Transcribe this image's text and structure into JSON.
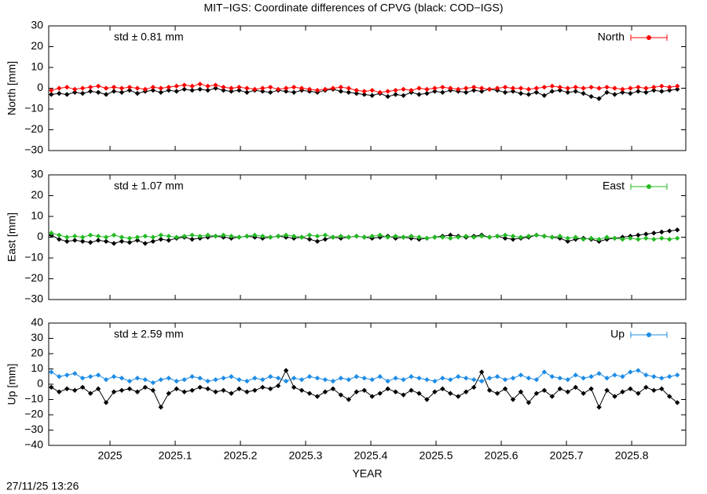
{
  "title": "MIT−IGS: Coordinate differences of CPVG (black: COD−IGS)",
  "timestamp": "27/11/25 13:26",
  "chart_data": [
    {
      "type": "line",
      "ylabel": "North [mm]",
      "annotation": "std ± 0.81 mm",
      "legend": "top-right",
      "x": [
        2024.91,
        2024.922,
        2024.934,
        2024.946,
        2024.958,
        2024.97,
        2024.982,
        2024.994,
        2025.006,
        2025.018,
        2025.03,
        2025.042,
        2025.054,
        2025.066,
        2025.078,
        2025.09,
        2025.102,
        2025.114,
        2025.126,
        2025.138,
        2025.15,
        2025.162,
        2025.174,
        2025.186,
        2025.198,
        2025.21,
        2025.222,
        2025.234,
        2025.246,
        2025.258,
        2025.27,
        2025.282,
        2025.294,
        2025.306,
        2025.318,
        2025.33,
        2025.342,
        2025.354,
        2025.366,
        2025.378,
        2025.39,
        2025.402,
        2025.414,
        2025.426,
        2025.438,
        2025.45,
        2025.462,
        2025.474,
        2025.486,
        2025.498,
        2025.51,
        2025.522,
        2025.534,
        2025.546,
        2025.558,
        2025.57,
        2025.582,
        2025.594,
        2025.606,
        2025.618,
        2025.63,
        2025.642,
        2025.654,
        2025.666,
        2025.678,
        2025.69,
        2025.702,
        2025.714,
        2025.726,
        2025.738,
        2025.75,
        2025.762,
        2025.774,
        2025.786,
        2025.798,
        2025.81,
        2025.822,
        2025.834,
        2025.846,
        2025.858,
        2025.87
      ],
      "series": [
        {
          "color": "#000000",
          "values": [
            -3,
            -2.5,
            -3,
            -2,
            -2.5,
            -1.5,
            -2,
            -3,
            -1.5,
            -2,
            -1,
            -2.5,
            -1.5,
            -1,
            -2,
            -1,
            -1.5,
            -0.5,
            -1,
            -0.5,
            -1,
            0,
            -1,
            -1.5,
            -1,
            -2,
            -1,
            -1.5,
            -2,
            -1,
            -1.5,
            -2,
            -1,
            -1.5,
            -2,
            -1,
            -0.5,
            -1.5,
            -2,
            -2.5,
            -3,
            -3.5,
            -2.5,
            -4,
            -3,
            -3.5,
            -2,
            -3,
            -2.5,
            -1.5,
            -2,
            -1,
            -1.5,
            -2,
            -1,
            -1.5,
            -0.5,
            -1,
            -2,
            -1.5,
            -2.5,
            -3,
            -2,
            -3.5,
            -1.5,
            -1,
            -2,
            -1.5,
            -2.5,
            -4,
            -5,
            -2,
            -3,
            -2,
            -2.5,
            -1.5,
            -2,
            -1,
            -1.5,
            -1,
            -0.5
          ]
        },
        {
          "name": "North",
          "color": "#ff0000",
          "values": [
            -1,
            0,
            0.5,
            -0.5,
            0,
            0.5,
            1,
            0,
            0.5,
            0,
            0.5,
            0,
            -0.5,
            0.5,
            0,
            0.5,
            1,
            1.5,
            1,
            2,
            1,
            1.5,
            0.5,
            0,
            0.5,
            0,
            -0.5,
            0,
            0.5,
            -0.5,
            0,
            0.5,
            0,
            -0.5,
            -1,
            -0.5,
            0,
            0.5,
            0,
            -1,
            -1.5,
            -1,
            -2,
            -1.5,
            -1,
            -0.5,
            -1,
            0,
            -0.5,
            0,
            0.5,
            0,
            -0.5,
            0,
            0.5,
            0,
            -0.5,
            0,
            0.5,
            0,
            0,
            -0.5,
            0,
            0.5,
            1,
            0.5,
            0,
            0.5,
            0,
            0.5,
            0,
            0.5,
            0,
            -0.5,
            0,
            0.5,
            0,
            0.5,
            1,
            0.5,
            1
          ]
        }
      ],
      "xlim": [
        2024.906,
        2025.883
      ],
      "xticks": [
        2025,
        2025.1,
        2025.2,
        2025.3,
        2025.4,
        2025.5,
        2025.6,
        2025.7,
        2025.8
      ],
      "ylim": [
        -30,
        30
      ],
      "yticks": [
        {
          "value": -30,
          "label": "−30"
        },
        {
          "value": -20,
          "label": "−20"
        },
        {
          "value": -10,
          "label": "−10"
        },
        0,
        10,
        20,
        30
      ]
    },
    {
      "type": "line",
      "ylabel": "East [mm]",
      "annotation": "std ± 1.07 mm",
      "legend": "top-right",
      "x": [
        2024.91,
        2024.922,
        2024.934,
        2024.946,
        2024.958,
        2024.97,
        2024.982,
        2024.994,
        2025.006,
        2025.018,
        2025.03,
        2025.042,
        2025.054,
        2025.066,
        2025.078,
        2025.09,
        2025.102,
        2025.114,
        2025.126,
        2025.138,
        2025.15,
        2025.162,
        2025.174,
        2025.186,
        2025.198,
        2025.21,
        2025.222,
        2025.234,
        2025.246,
        2025.258,
        2025.27,
        2025.282,
        2025.294,
        2025.306,
        2025.318,
        2025.33,
        2025.342,
        2025.354,
        2025.366,
        2025.378,
        2025.39,
        2025.402,
        2025.414,
        2025.426,
        2025.438,
        2025.45,
        2025.462,
        2025.474,
        2025.486,
        2025.498,
        2025.51,
        2025.522,
        2025.534,
        2025.546,
        2025.558,
        2025.57,
        2025.582,
        2025.594,
        2025.606,
        2025.618,
        2025.63,
        2025.642,
        2025.654,
        2025.666,
        2025.678,
        2025.69,
        2025.702,
        2025.714,
        2025.726,
        2025.738,
        2025.75,
        2025.762,
        2025.774,
        2025.786,
        2025.798,
        2025.81,
        2025.822,
        2025.834,
        2025.846,
        2025.858,
        2025.87
      ],
      "series": [
        {
          "color": "#000000",
          "values": [
            1,
            -1,
            -2,
            -1.5,
            -2,
            -2.5,
            -1.5,
            -2,
            -3,
            -2,
            -2.5,
            -1.5,
            -3,
            -2,
            -1,
            -1.5,
            -0.5,
            0,
            -1,
            -0.5,
            0,
            0.5,
            0,
            -0.5,
            0,
            0.5,
            0,
            -0.5,
            0,
            0.5,
            0,
            -0.5,
            0,
            -1,
            -2,
            -1,
            0,
            -0.5,
            0,
            0.5,
            0,
            -0.5,
            0,
            0.5,
            -0.5,
            0,
            -0.5,
            -1,
            -0.5,
            0,
            0.5,
            1,
            0.5,
            0,
            0.5,
            1,
            0,
            0.5,
            -0.5,
            -1,
            -0.5,
            0,
            1,
            0.5,
            0,
            -0.5,
            -2,
            -1,
            -0.5,
            -1,
            -2,
            -1,
            -0.5,
            0,
            0.5,
            1,
            1.5,
            2,
            2.5,
            3,
            3.5
          ]
        },
        {
          "name": "East",
          "color": "#22bb22",
          "values": [
            2,
            1,
            0,
            0.5,
            0,
            1,
            0.5,
            0,
            1,
            0,
            -0.5,
            0,
            0.5,
            0,
            1,
            0.5,
            0,
            0.5,
            1,
            0.5,
            1,
            0.5,
            1,
            0.5,
            0,
            0.5,
            1,
            0.5,
            0,
            0.5,
            1,
            0.5,
            0,
            1,
            0.5,
            1,
            0,
            0.5,
            0,
            0.5,
            0,
            0.5,
            1,
            0,
            0.5,
            0,
            0.5,
            0,
            -0.5,
            0,
            0,
            -0.5,
            0,
            0.5,
            0,
            0.5,
            0,
            0.5,
            1,
            0.5,
            0,
            0.5,
            1,
            0.5,
            0,
            0.5,
            -0.5,
            0,
            -1,
            -0.5,
            -1,
            0,
            -0.5,
            -1,
            -0.5,
            -1,
            -0.5,
            -1,
            -0.5,
            -1,
            -0.5
          ]
        }
      ],
      "xlim": [
        2024.906,
        2025.883
      ],
      "xticks": [
        2025,
        2025.1,
        2025.2,
        2025.3,
        2025.4,
        2025.5,
        2025.6,
        2025.7,
        2025.8
      ],
      "ylim": [
        -30,
        30
      ],
      "yticks": [
        {
          "value": -30,
          "label": "−30"
        },
        {
          "value": -20,
          "label": "−20"
        },
        {
          "value": -10,
          "label": "−10"
        },
        0,
        10,
        20,
        30
      ]
    },
    {
      "type": "line",
      "ylabel": "Up [mm]",
      "xlabel": "YEAR",
      "annotation": "std ± 2.59 mm",
      "legend": "top-right",
      "x": [
        2024.91,
        2024.922,
        2024.934,
        2024.946,
        2024.958,
        2024.97,
        2024.982,
        2024.994,
        2025.006,
        2025.018,
        2025.03,
        2025.042,
        2025.054,
        2025.066,
        2025.078,
        2025.09,
        2025.102,
        2025.114,
        2025.126,
        2025.138,
        2025.15,
        2025.162,
        2025.174,
        2025.186,
        2025.198,
        2025.21,
        2025.222,
        2025.234,
        2025.246,
        2025.258,
        2025.27,
        2025.282,
        2025.294,
        2025.306,
        2025.318,
        2025.33,
        2025.342,
        2025.354,
        2025.366,
        2025.378,
        2025.39,
        2025.402,
        2025.414,
        2025.426,
        2025.438,
        2025.45,
        2025.462,
        2025.474,
        2025.486,
        2025.498,
        2025.51,
        2025.522,
        2025.534,
        2025.546,
        2025.558,
        2025.57,
        2025.582,
        2025.594,
        2025.606,
        2025.618,
        2025.63,
        2025.642,
        2025.654,
        2025.666,
        2025.678,
        2025.69,
        2025.702,
        2025.714,
        2025.726,
        2025.738,
        2025.75,
        2025.762,
        2025.774,
        2025.786,
        2025.798,
        2025.81,
        2025.822,
        2025.834,
        2025.846,
        2025.858,
        2025.87
      ],
      "series": [
        {
          "color": "#000000",
          "values": [
            -2,
            -5,
            -3,
            -4,
            -2,
            -6,
            -3,
            -12,
            -5,
            -4,
            -3,
            -5,
            -2,
            -4,
            -15,
            -6,
            -3,
            -5,
            -4,
            -2,
            -3,
            -5,
            -4,
            -6,
            -3,
            -5,
            -4,
            -2,
            -3,
            -1,
            9,
            -2,
            -4,
            -6,
            -8,
            -5,
            -3,
            -7,
            -10,
            -5,
            -4,
            -8,
            -6,
            -3,
            -5,
            -7,
            -4,
            -6,
            -10,
            -5,
            -3,
            -6,
            -8,
            -5,
            -2,
            8,
            -4,
            -6,
            -3,
            -10,
            -5,
            -12,
            -6,
            -4,
            -8,
            -3,
            -5,
            -2,
            -6,
            -3,
            -15,
            -4,
            -8,
            -5,
            -3,
            -6,
            -2,
            -4,
            -3,
            -8,
            -12
          ]
        },
        {
          "name": "Up",
          "color": "#1e8ce6",
          "values": [
            8,
            5,
            6,
            7,
            4,
            5,
            6,
            3,
            5,
            4,
            2,
            4,
            3,
            1,
            3,
            4,
            2,
            3,
            5,
            4,
            2,
            3,
            4,
            5,
            3,
            2,
            4,
            3,
            5,
            4,
            2,
            4,
            3,
            5,
            4,
            3,
            2,
            4,
            3,
            5,
            4,
            3,
            5,
            2,
            4,
            3,
            5,
            4,
            3,
            2,
            4,
            3,
            5,
            4,
            3,
            2,
            4,
            5,
            3,
            4,
            6,
            4,
            3,
            8,
            5,
            4,
            3,
            6,
            4,
            5,
            7,
            4,
            6,
            5,
            8,
            9,
            6,
            5,
            4,
            5,
            6
          ]
        }
      ],
      "xlim": [
        2024.906,
        2025.883
      ],
      "xticks": [
        2025,
        2025.1,
        2025.2,
        2025.3,
        2025.4,
        2025.5,
        2025.6,
        2025.7,
        2025.8
      ],
      "ylim": [
        -40,
        40
      ],
      "yticks": [
        {
          "value": -40,
          "label": "−40"
        },
        {
          "value": -30,
          "label": "−30"
        },
        {
          "value": -20,
          "label": "−20"
        },
        {
          "value": -10,
          "label": "−10"
        },
        0,
        10,
        20,
        30,
        40
      ]
    }
  ]
}
